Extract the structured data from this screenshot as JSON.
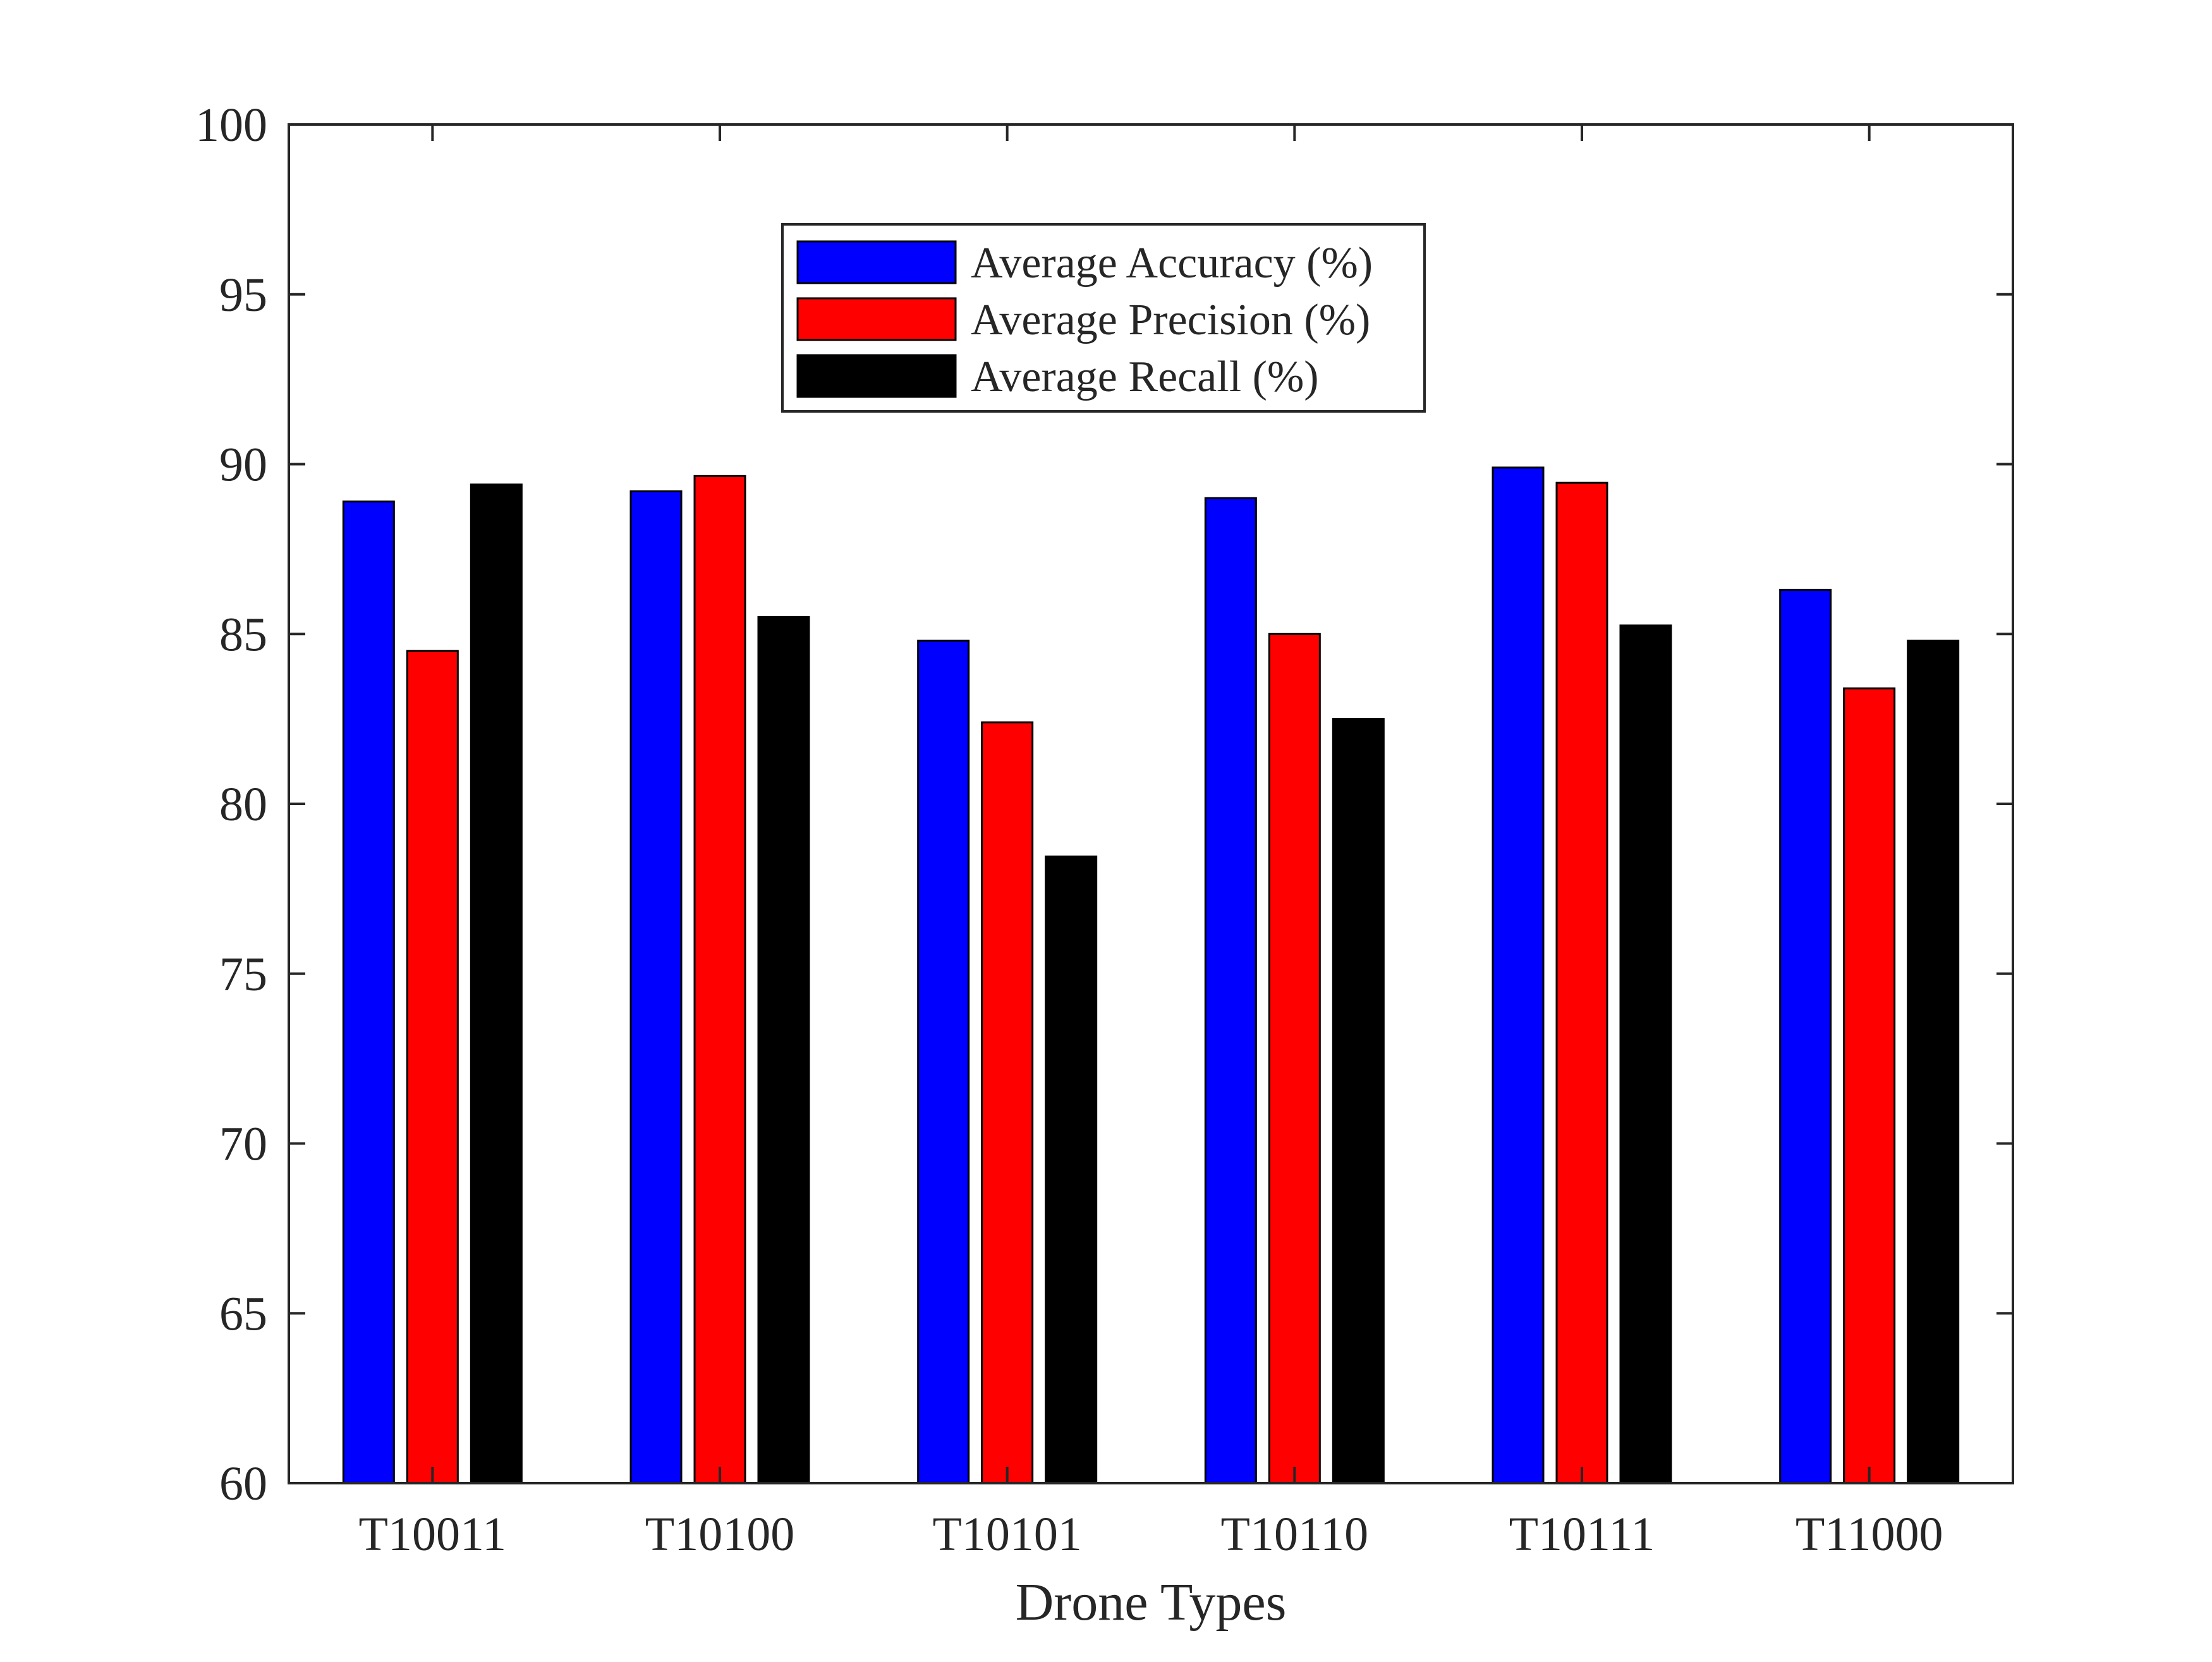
{
  "chart_data": {
    "type": "bar",
    "title": "",
    "xlabel": "Drone Types",
    "ylabel": "",
    "categories": [
      "T10011",
      "T10100",
      "T10101",
      "T10110",
      "T10111",
      "T11000"
    ],
    "series": [
      {
        "name": "Average Accuracy (%)",
        "color": "#0000ff",
        "values": [
          88.9,
          89.2,
          84.8,
          89.0,
          89.9,
          86.3
        ]
      },
      {
        "name": "Average Precision (%)",
        "color": "#ff0000",
        "values": [
          84.5,
          89.65,
          82.4,
          85.0,
          89.45,
          83.4
        ]
      },
      {
        "name": "Average Recall (%)",
        "color": "#000000",
        "values": [
          89.4,
          85.5,
          78.45,
          82.5,
          85.25,
          84.8
        ]
      }
    ],
    "ylim": [
      60,
      100
    ],
    "yticks": [
      60,
      65,
      70,
      75,
      80,
      85,
      90,
      95,
      100
    ],
    "yticklabels": [
      "60",
      "65",
      "70",
      "75",
      "80",
      "85",
      "90",
      "95",
      "100"
    ],
    "grid": false,
    "legend_position": "top-center"
  }
}
